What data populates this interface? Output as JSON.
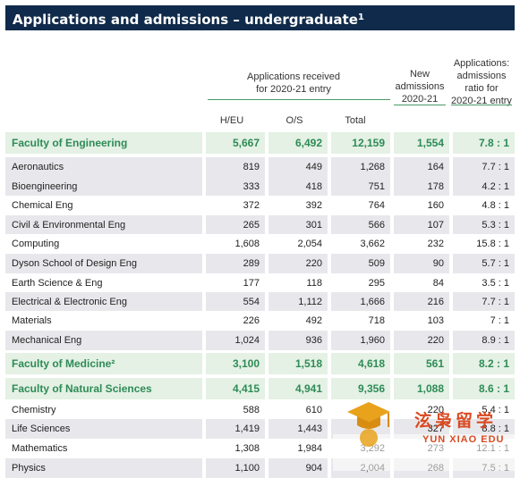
{
  "title": "Applications and admissions – undergraduate",
  "title_sup": "1",
  "headers": {
    "group": "Applications received for 2020-21 entry",
    "heu": "H/EU",
    "os": "O/S",
    "total": "Total",
    "new": "New admissions 2020-21",
    "ratio": "Applications: admissions ratio for 2020-21 entry"
  },
  "rows": [
    {
      "type": "faculty",
      "name": "Faculty of Engineering",
      "heu": "5,667",
      "os": "6,492",
      "total": "12,159",
      "new": "1,554",
      "ratio": "7.8 : 1"
    },
    {
      "type": "shade",
      "name": "Aeronautics",
      "heu": "819",
      "os": "449",
      "total": "1,268",
      "new": "164",
      "ratio": "7.7 : 1"
    },
    {
      "type": "shade",
      "name": "Bioengineering",
      "heu": "333",
      "os": "418",
      "total": "751",
      "new": "178",
      "ratio": "4.2 : 1"
    },
    {
      "type": "plain",
      "name": "Chemical Eng",
      "heu": "372",
      "os": "392",
      "total": "764",
      "new": "160",
      "ratio": "4.8 : 1"
    },
    {
      "type": "shade",
      "name": "Civil & Environmental Eng",
      "heu": "265",
      "os": "301",
      "total": "566",
      "new": "107",
      "ratio": "5.3 : 1"
    },
    {
      "type": "plain",
      "name": "Computing",
      "heu": "1,608",
      "os": "2,054",
      "total": "3,662",
      "new": "232",
      "ratio": "15.8 : 1"
    },
    {
      "type": "shade",
      "name": "Dyson School of Design Eng",
      "heu": "289",
      "os": "220",
      "total": "509",
      "new": "90",
      "ratio": "5.7 : 1"
    },
    {
      "type": "plain",
      "name": "Earth Science & Eng",
      "heu": "177",
      "os": "118",
      "total": "295",
      "new": "84",
      "ratio": "3.5 : 1"
    },
    {
      "type": "shade",
      "name": "Electrical & Electronic Eng",
      "heu": "554",
      "os": "1,112",
      "total": "1,666",
      "new": "216",
      "ratio": "7.7 : 1"
    },
    {
      "type": "plain",
      "name": "Materials",
      "heu": "226",
      "os": "492",
      "total": "718",
      "new": "103",
      "ratio": "7 : 1"
    },
    {
      "type": "shade",
      "name": "Mechanical Eng",
      "heu": "1,024",
      "os": "936",
      "total": "1,960",
      "new": "220",
      "ratio": "8.9 : 1"
    },
    {
      "type": "faculty",
      "name": "Faculty of Medicine²",
      "heu": "3,100",
      "os": "1,518",
      "total": "4,618",
      "new": "561",
      "ratio": "8.2 : 1"
    },
    {
      "type": "faculty",
      "name": "Faculty of Natural Sciences",
      "heu": "4,415",
      "os": "4,941",
      "total": "9,356",
      "new": "1,088",
      "ratio": "8.6 : 1"
    },
    {
      "type": "plain",
      "name": "Chemistry",
      "heu": "588",
      "os": "610",
      "total": "",
      "new": "220",
      "ratio": "5.4 : 1"
    },
    {
      "type": "shade",
      "name": "Life Sciences",
      "heu": "1,419",
      "os": "1,443",
      "total": "",
      "new": "327",
      "ratio": "8.8 : 1"
    },
    {
      "type": "plain",
      "name": "Mathematics",
      "heu": "1,308",
      "os": "1,984",
      "total": "3,292",
      "new": "273",
      "ratio": "12.1 : 1"
    },
    {
      "type": "shade",
      "name": "Physics",
      "heu": "1,100",
      "os": "904",
      "total": "2,004",
      "new": "268",
      "ratio": "7.5 : 1"
    }
  ],
  "watermark": {
    "cn": "泫枭留学",
    "en": "YUN XIAO EDU"
  }
}
